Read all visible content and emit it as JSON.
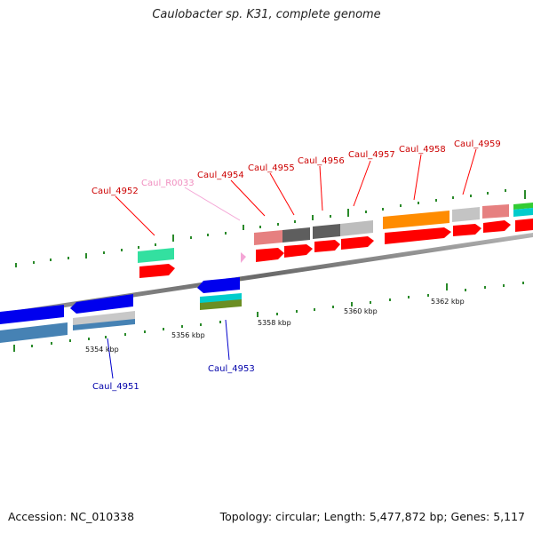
{
  "title": "Caulobacter sp. K31, complete genome",
  "footer": {
    "accession": "Accession: NC_010338",
    "summary": "Topology: circular; Length: 5,477,872 bp; Genes: 5,117"
  },
  "scale_labels": [
    "5354 kbp",
    "5356 kbp",
    "5358 kbp",
    "5360 kbp",
    "5362 kbp"
  ],
  "gene_labels": {
    "top": [
      "Caul_4952",
      "Caul_R0033",
      "Caul_4954",
      "Caul_4955",
      "Caul_4956",
      "Caul_4957",
      "Caul_4958",
      "Caul_4959"
    ],
    "bottom": [
      "Caul_4951",
      "Caul_4953"
    ]
  },
  "colors": {
    "forward_cds": "#ff0000",
    "reverse_cds": "#0000ee",
    "top_label": "#cc0000",
    "bottom_label": "#0000aa",
    "rna_label": "#f08fc0",
    "tick": "#2a8a2a"
  }
}
